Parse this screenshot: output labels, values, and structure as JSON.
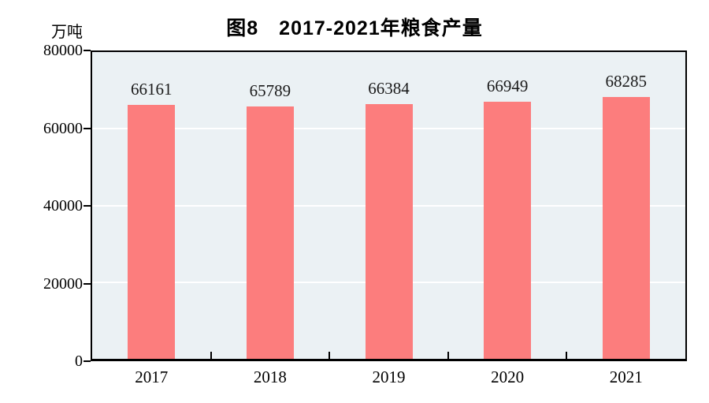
{
  "chart_data": {
    "type": "bar",
    "title": "图8　2017-2021年粮食产量",
    "unit_label": "万吨",
    "categories": [
      "2017",
      "2018",
      "2019",
      "2020",
      "2021"
    ],
    "values": [
      66161,
      65789,
      66384,
      66949,
      68285
    ],
    "value_labels": [
      "66161",
      "65789",
      "66384",
      "66949",
      "68285"
    ],
    "xlabel": "",
    "ylabel": "万吨",
    "ylim": [
      0,
      80000
    ],
    "yticks": [
      0,
      20000,
      40000,
      60000,
      80000
    ],
    "ytick_labels": [
      "0",
      "20000",
      "40000",
      "60000",
      "80000"
    ],
    "grid": true,
    "legend_position": "none",
    "colors": {
      "bar": "#FC7D7D",
      "plot_background": "#EBF1F4",
      "gridline": "#FFFFFF",
      "axis": "#000000",
      "text": "#000000"
    }
  }
}
